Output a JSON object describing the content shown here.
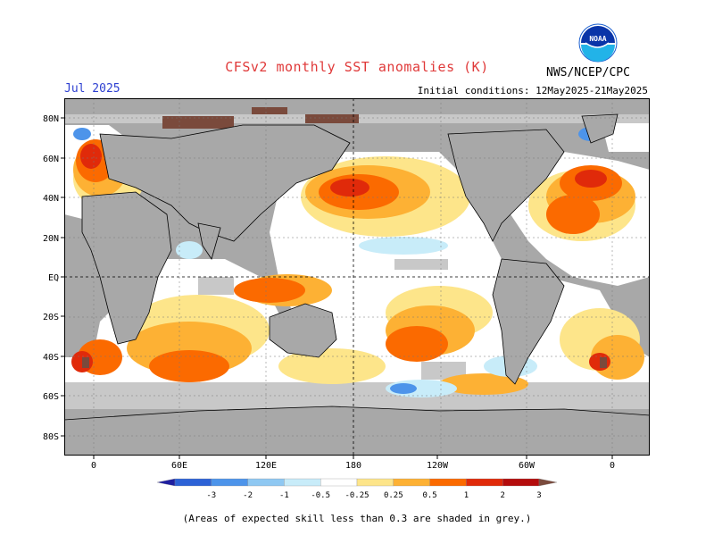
{
  "header": {
    "title": "CFSv2 monthly SST anomalies (K)",
    "valid_month": "Jul 2025",
    "initial_conditions": "Initial conditions: 12May2025-21May2025",
    "agency": "NWS/NCEP/CPC",
    "logo_text": "NOAA"
  },
  "map": {
    "lat_ticks": [
      "80N",
      "60N",
      "40N",
      "20N",
      "EQ",
      "20S",
      "40S",
      "60S",
      "80S"
    ],
    "lon_ticks": [
      "0",
      "60E",
      "120E",
      "180",
      "120W",
      "60W",
      "0"
    ],
    "land_color": "#a8a8a8",
    "low_skill_color": "#c8c8c8"
  },
  "colorbar": {
    "labels": [
      "-3",
      "-2",
      "-1",
      "-0.5",
      "-0.25",
      "0.25",
      "0.5",
      "1",
      "2",
      "3"
    ],
    "colors": [
      "#1f1fa0",
      "#2d62d6",
      "#4d94ea",
      "#8fc8f2",
      "#c8ecf9",
      "#ffffff",
      "#fde58a",
      "#fdb134",
      "#fb6a00",
      "#e02a0a",
      "#b40c0c",
      "#7a4a3c"
    ]
  },
  "footnote": "(Areas of expected skill less than 0.3 are shaded in grey.)"
}
